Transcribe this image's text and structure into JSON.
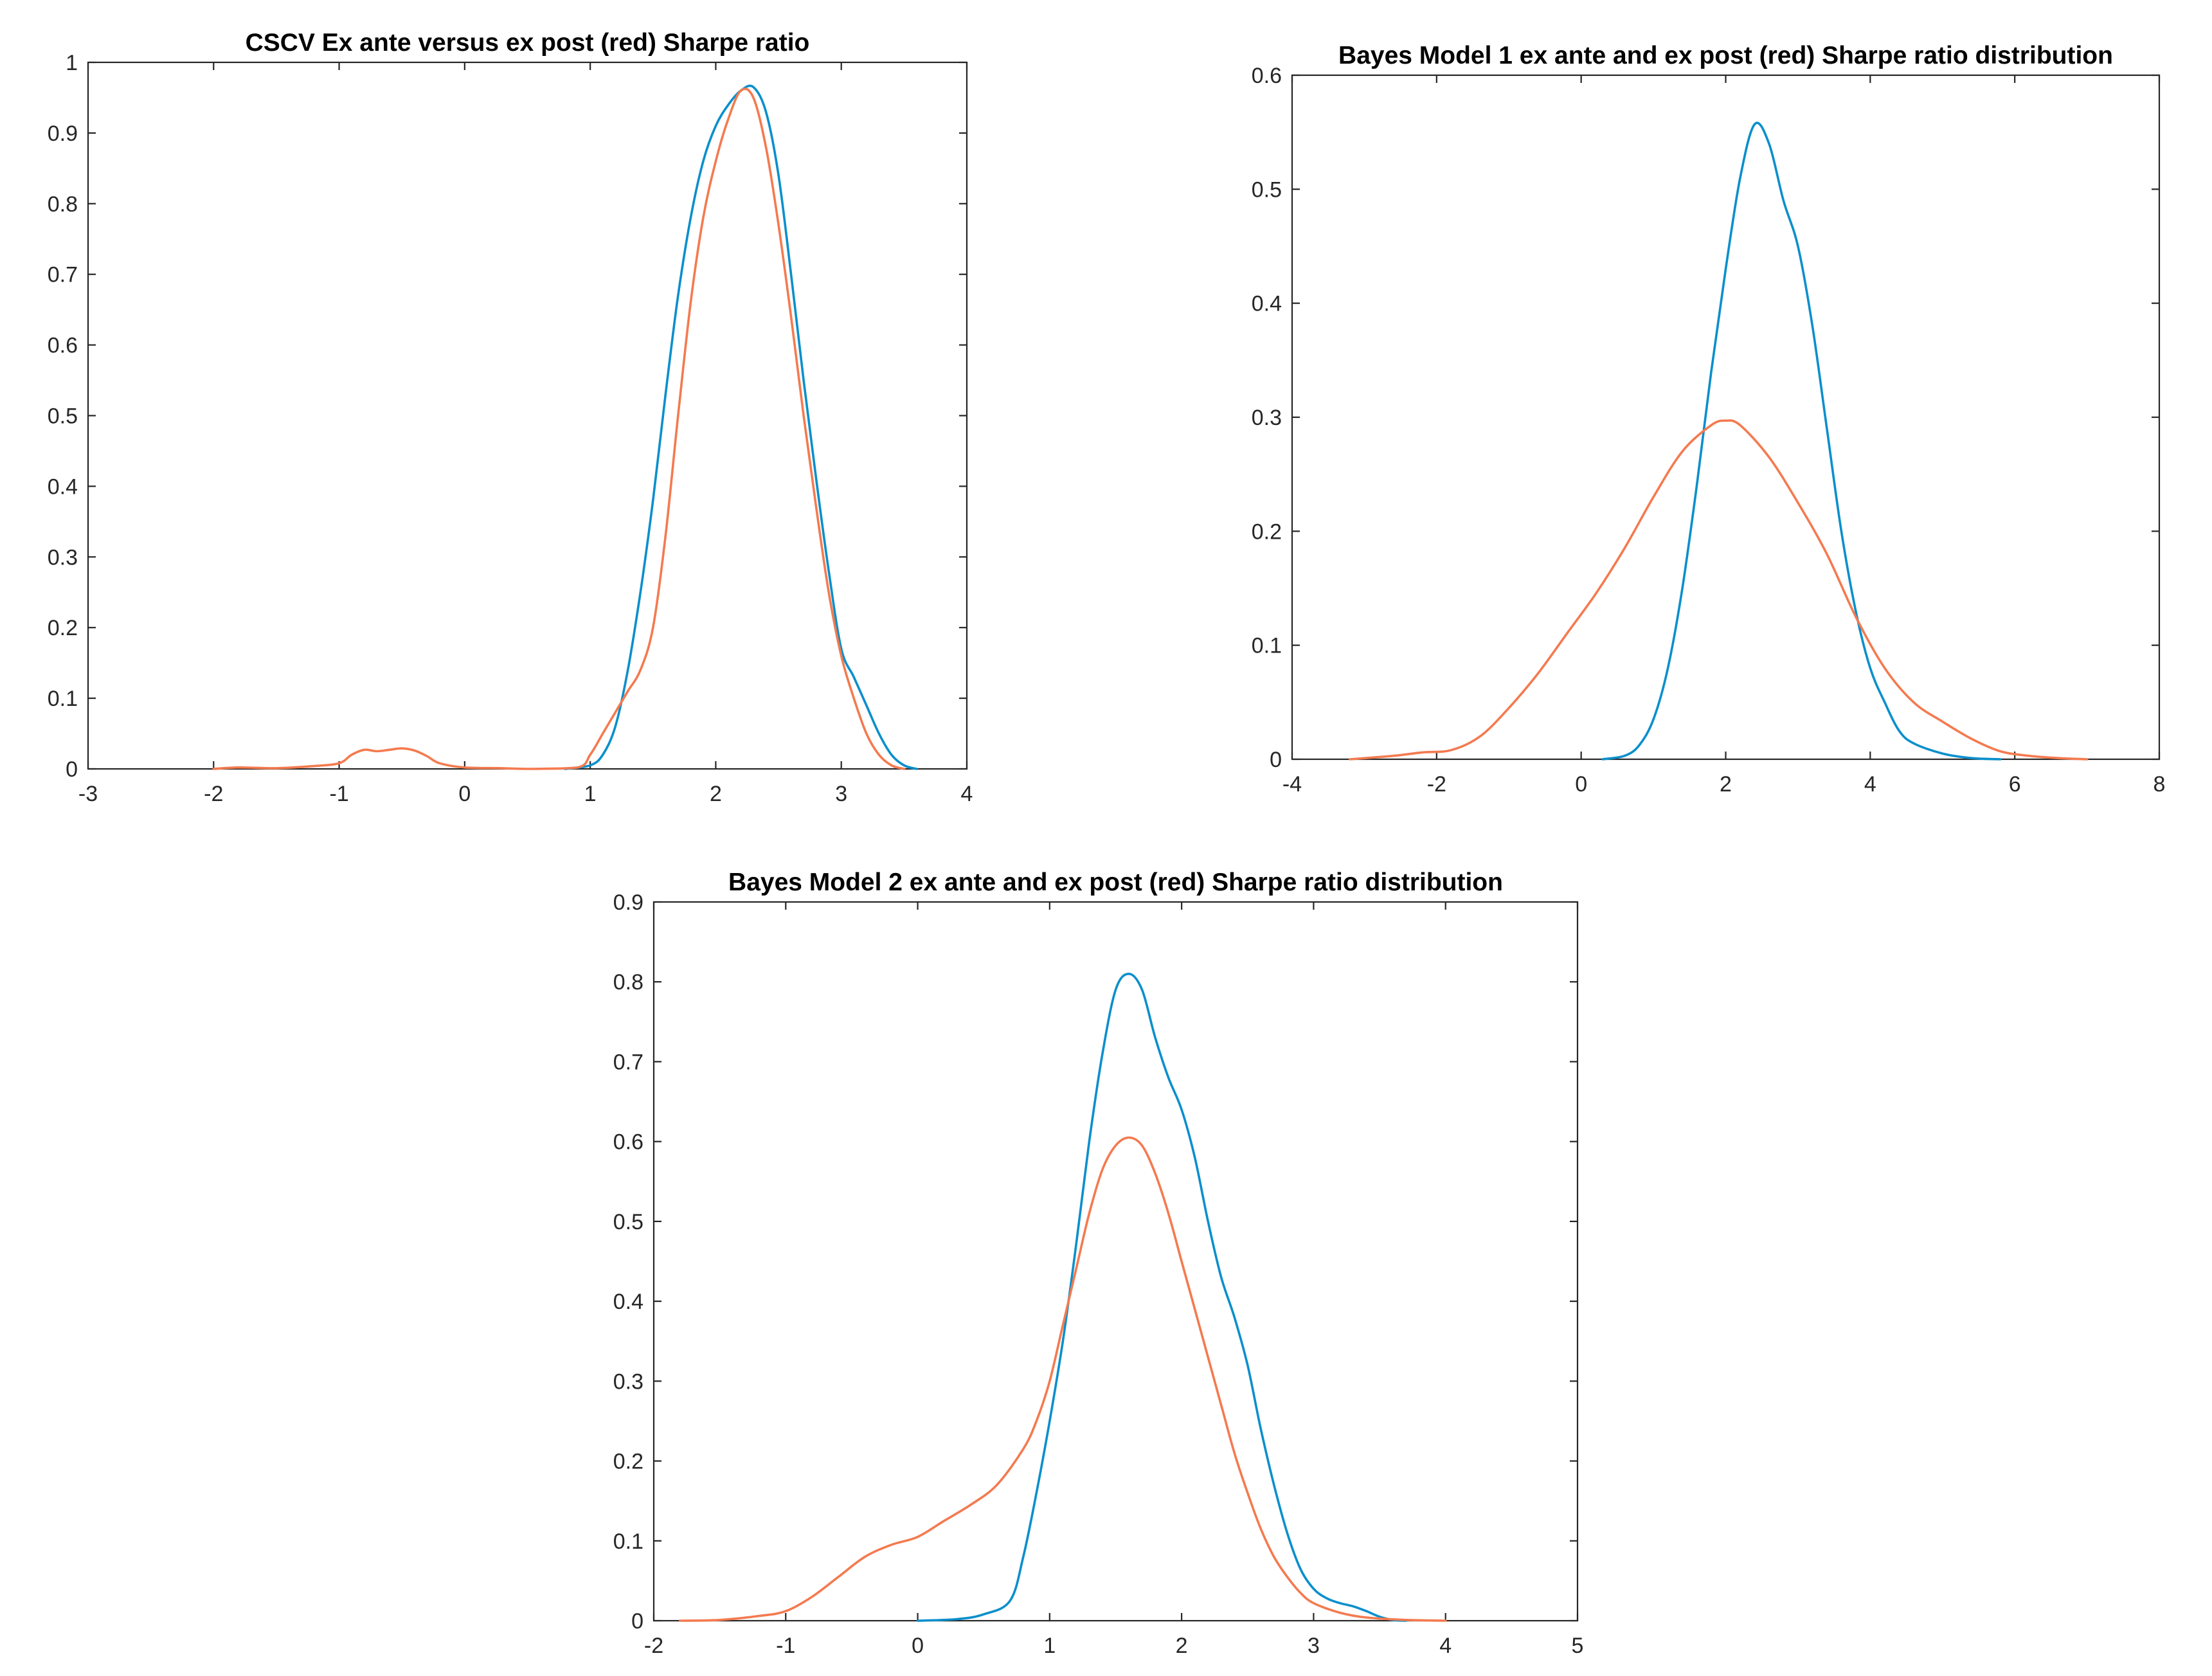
{
  "colors": {
    "ex_ante": "#0a8fcc",
    "ex_post": "#f47a4f",
    "axis": "#262626"
  },
  "chart_data": [
    {
      "type": "line",
      "title": "CSCV Ex ante versus ex post (red) Sharpe ratio",
      "xlabel": "",
      "ylabel": "",
      "xlim": [
        -3,
        4
      ],
      "ylim": [
        0,
        1
      ],
      "xticks": [
        -3,
        -2,
        -1,
        0,
        1,
        2,
        3,
        4
      ],
      "yticks": [
        0,
        0.1,
        0.2,
        0.3,
        0.4,
        0.5,
        0.6,
        0.7,
        0.8,
        0.9,
        1
      ],
      "xtick_labels": [
        "-3",
        "-2",
        "-1",
        "0",
        "1",
        "2",
        "3",
        "4"
      ],
      "ytick_labels": [
        "0",
        "0.1",
        "0.2",
        "0.3",
        "0.4",
        "0.5",
        "0.6",
        "0.7",
        "0.8",
        "0.9",
        "1"
      ],
      "grid": false,
      "series": [
        {
          "color": "#0a8fcc",
          "points": [
            [
              0.8,
              0
            ],
            [
              1.0,
              0.005
            ],
            [
              1.1,
              0.02
            ],
            [
              1.2,
              0.06
            ],
            [
              1.3,
              0.14
            ],
            [
              1.4,
              0.25
            ],
            [
              1.5,
              0.38
            ],
            [
              1.6,
              0.53
            ],
            [
              1.7,
              0.67
            ],
            [
              1.8,
              0.78
            ],
            [
              1.9,
              0.86
            ],
            [
              2.0,
              0.91
            ],
            [
              2.1,
              0.94
            ],
            [
              2.2,
              0.96
            ],
            [
              2.3,
              0.965
            ],
            [
              2.4,
              0.93
            ],
            [
              2.5,
              0.84
            ],
            [
              2.6,
              0.7
            ],
            [
              2.7,
              0.55
            ],
            [
              2.8,
              0.41
            ],
            [
              2.9,
              0.28
            ],
            [
              3.0,
              0.17
            ],
            [
              3.1,
              0.13
            ],
            [
              3.2,
              0.09
            ],
            [
              3.3,
              0.05
            ],
            [
              3.4,
              0.02
            ],
            [
              3.5,
              0.005
            ],
            [
              3.6,
              0
            ]
          ]
        },
        {
          "color": "#f47a4f",
          "points": [
            [
              -2.0,
              0
            ],
            [
              -1.8,
              0.002
            ],
            [
              -1.5,
              0.001
            ],
            [
              -1.2,
              0.004
            ],
            [
              -1.0,
              0.008
            ],
            [
              -0.9,
              0.02
            ],
            [
              -0.8,
              0.027
            ],
            [
              -0.7,
              0.025
            ],
            [
              -0.6,
              0.027
            ],
            [
              -0.5,
              0.029
            ],
            [
              -0.4,
              0.026
            ],
            [
              -0.3,
              0.018
            ],
            [
              -0.2,
              0.008
            ],
            [
              0.0,
              0.002
            ],
            [
              0.3,
              0.001
            ],
            [
              0.5,
              0
            ],
            [
              0.9,
              0.002
            ],
            [
              1.0,
              0.02
            ],
            [
              1.1,
              0.05
            ],
            [
              1.2,
              0.08
            ],
            [
              1.3,
              0.11
            ],
            [
              1.4,
              0.14
            ],
            [
              1.5,
              0.2
            ],
            [
              1.6,
              0.33
            ],
            [
              1.7,
              0.5
            ],
            [
              1.8,
              0.66
            ],
            [
              1.9,
              0.78
            ],
            [
              2.0,
              0.86
            ],
            [
              2.1,
              0.92
            ],
            [
              2.2,
              0.96
            ],
            [
              2.3,
              0.95
            ],
            [
              2.4,
              0.88
            ],
            [
              2.5,
              0.77
            ],
            [
              2.6,
              0.64
            ],
            [
              2.7,
              0.5
            ],
            [
              2.8,
              0.37
            ],
            [
              2.9,
              0.25
            ],
            [
              3.0,
              0.16
            ],
            [
              3.1,
              0.1
            ],
            [
              3.2,
              0.05
            ],
            [
              3.3,
              0.02
            ],
            [
              3.4,
              0.005
            ],
            [
              3.5,
              0
            ]
          ]
        }
      ]
    },
    {
      "type": "line",
      "title": "Bayes Model 1 ex ante and ex post (red) Sharpe ratio distribution",
      "xlabel": "",
      "ylabel": "",
      "xlim": [
        -4,
        8
      ],
      "ylim": [
        0,
        0.6
      ],
      "xticks": [
        -4,
        -2,
        0,
        2,
        4,
        6,
        8
      ],
      "yticks": [
        0,
        0.1,
        0.2,
        0.3,
        0.4,
        0.5,
        0.6
      ],
      "xtick_labels": [
        "-4",
        "-2",
        "0",
        "2",
        "4",
        "6",
        "8"
      ],
      "ytick_labels": [
        "0",
        "0.1",
        "0.2",
        "0.3",
        "0.4",
        "0.5",
        "0.6"
      ],
      "grid": false,
      "series": [
        {
          "color": "#0a8fcc",
          "points": [
            [
              0.3,
              0
            ],
            [
              0.6,
              0.003
            ],
            [
              0.8,
              0.012
            ],
            [
              1.0,
              0.035
            ],
            [
              1.2,
              0.08
            ],
            [
              1.4,
              0.15
            ],
            [
              1.6,
              0.24
            ],
            [
              1.8,
              0.34
            ],
            [
              2.0,
              0.43
            ],
            [
              2.2,
              0.51
            ],
            [
              2.4,
              0.557
            ],
            [
              2.6,
              0.54
            ],
            [
              2.8,
              0.49
            ],
            [
              3.0,
              0.45
            ],
            [
              3.2,
              0.38
            ],
            [
              3.4,
              0.29
            ],
            [
              3.6,
              0.2
            ],
            [
              3.8,
              0.13
            ],
            [
              4.0,
              0.08
            ],
            [
              4.2,
              0.05
            ],
            [
              4.4,
              0.025
            ],
            [
              4.6,
              0.014
            ],
            [
              5.0,
              0.005
            ],
            [
              5.4,
              0.001
            ],
            [
              5.8,
              0
            ]
          ]
        },
        {
          "color": "#f47a4f",
          "points": [
            [
              -3.2,
              0
            ],
            [
              -2.6,
              0.003
            ],
            [
              -2.2,
              0.006
            ],
            [
              -1.8,
              0.008
            ],
            [
              -1.4,
              0.02
            ],
            [
              -1.0,
              0.045
            ],
            [
              -0.6,
              0.075
            ],
            [
              -0.2,
              0.11
            ],
            [
              0.2,
              0.145
            ],
            [
              0.6,
              0.185
            ],
            [
              1.0,
              0.23
            ],
            [
              1.4,
              0.27
            ],
            [
              1.8,
              0.293
            ],
            [
              2.0,
              0.297
            ],
            [
              2.2,
              0.293
            ],
            [
              2.6,
              0.265
            ],
            [
              3.0,
              0.225
            ],
            [
              3.4,
              0.18
            ],
            [
              3.8,
              0.125
            ],
            [
              4.2,
              0.08
            ],
            [
              4.6,
              0.05
            ],
            [
              5.0,
              0.033
            ],
            [
              5.4,
              0.018
            ],
            [
              5.8,
              0.007
            ],
            [
              6.2,
              0.003
            ],
            [
              6.6,
              0.001
            ],
            [
              7.0,
              0
            ]
          ]
        }
      ]
    },
    {
      "type": "line",
      "title": "Bayes Model 2 ex ante and ex post (red) Sharpe ratio distribution",
      "xlabel": "",
      "ylabel": "",
      "xlim": [
        -2,
        5
      ],
      "ylim": [
        0,
        0.9
      ],
      "xticks": [
        -2,
        -1,
        0,
        1,
        2,
        3,
        4,
        5
      ],
      "yticks": [
        0,
        0.1,
        0.2,
        0.3,
        0.4,
        0.5,
        0.6,
        0.7,
        0.8,
        0.9
      ],
      "xtick_labels": [
        "-2",
        "-1",
        "0",
        "1",
        "2",
        "3",
        "4",
        "5"
      ],
      "ytick_labels": [
        "0",
        "0.1",
        "0.2",
        "0.3",
        "0.4",
        "0.5",
        "0.6",
        "0.7",
        "0.8",
        "0.9"
      ],
      "grid": false,
      "series": [
        {
          "color": "#0a8fcc",
          "points": [
            [
              0.0,
              0
            ],
            [
              0.3,
              0.002
            ],
            [
              0.5,
              0.008
            ],
            [
              0.7,
              0.025
            ],
            [
              0.8,
              0.08
            ],
            [
              0.9,
              0.16
            ],
            [
              1.0,
              0.25
            ],
            [
              1.1,
              0.35
            ],
            [
              1.2,
              0.47
            ],
            [
              1.3,
              0.6
            ],
            [
              1.4,
              0.71
            ],
            [
              1.5,
              0.79
            ],
            [
              1.6,
              0.81
            ],
            [
              1.7,
              0.79
            ],
            [
              1.8,
              0.73
            ],
            [
              1.9,
              0.68
            ],
            [
              2.0,
              0.64
            ],
            [
              2.1,
              0.58
            ],
            [
              2.2,
              0.5
            ],
            [
              2.3,
              0.43
            ],
            [
              2.4,
              0.38
            ],
            [
              2.5,
              0.32
            ],
            [
              2.6,
              0.24
            ],
            [
              2.7,
              0.17
            ],
            [
              2.8,
              0.11
            ],
            [
              2.9,
              0.065
            ],
            [
              3.0,
              0.04
            ],
            [
              3.1,
              0.028
            ],
            [
              3.2,
              0.022
            ],
            [
              3.3,
              0.018
            ],
            [
              3.4,
              0.012
            ],
            [
              3.5,
              0.005
            ],
            [
              3.6,
              0.001
            ],
            [
              3.7,
              0
            ]
          ]
        },
        {
          "color": "#f47a4f",
          "points": [
            [
              -1.8,
              0
            ],
            [
              -1.5,
              0.001
            ],
            [
              -1.2,
              0.006
            ],
            [
              -1.0,
              0.012
            ],
            [
              -0.8,
              0.03
            ],
            [
              -0.6,
              0.055
            ],
            [
              -0.4,
              0.08
            ],
            [
              -0.2,
              0.095
            ],
            [
              0.0,
              0.105
            ],
            [
              0.2,
              0.125
            ],
            [
              0.4,
              0.145
            ],
            [
              0.6,
              0.17
            ],
            [
              0.8,
              0.215
            ],
            [
              0.9,
              0.25
            ],
            [
              1.0,
              0.3
            ],
            [
              1.1,
              0.37
            ],
            [
              1.2,
              0.44
            ],
            [
              1.3,
              0.51
            ],
            [
              1.4,
              0.565
            ],
            [
              1.5,
              0.595
            ],
            [
              1.6,
              0.605
            ],
            [
              1.7,
              0.595
            ],
            [
              1.8,
              0.56
            ],
            [
              1.9,
              0.51
            ],
            [
              2.0,
              0.45
            ],
            [
              2.1,
              0.39
            ],
            [
              2.2,
              0.33
            ],
            [
              2.3,
              0.27
            ],
            [
              2.4,
              0.21
            ],
            [
              2.5,
              0.16
            ],
            [
              2.6,
              0.115
            ],
            [
              2.7,
              0.08
            ],
            [
              2.8,
              0.055
            ],
            [
              2.9,
              0.035
            ],
            [
              3.0,
              0.022
            ],
            [
              3.2,
              0.01
            ],
            [
              3.4,
              0.004
            ],
            [
              3.7,
              0.001
            ],
            [
              4.0,
              0
            ]
          ]
        }
      ]
    }
  ]
}
